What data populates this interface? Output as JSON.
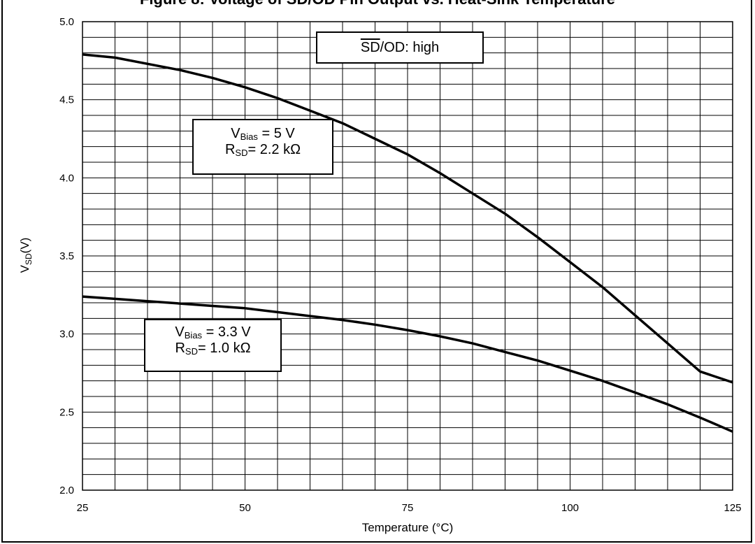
{
  "page": {
    "title": "Figure 8: Voltage of SD/OD Pin Output vs. Heat-Sink Temperature"
  },
  "chart_data": {
    "type": "line",
    "title": "Figure 8: Voltage of SD/OD Pin Output vs. Heat-Sink Temperature",
    "xlabel": "Temperature (°C)",
    "ylabel_main": "V",
    "ylabel_sub": "SD",
    "ylabel_suffix": "(V)",
    "xlim": [
      25,
      125
    ],
    "ylim": [
      2.0,
      5.0
    ],
    "x_ticks": [
      "25",
      "50",
      "75",
      "100",
      "125"
    ],
    "y_ticks": [
      "2.0",
      "2.5",
      "3.0",
      "3.5",
      "4.0",
      "4.5",
      "5.0"
    ],
    "grid": true,
    "annotations": {
      "state": {
        "overline": "SD",
        "rest": "/OD: high"
      },
      "curve_5v": {
        "vbias_sym": "V",
        "vbias_sub": "Bias",
        "vbias_val": " = 5 V",
        "rsd_sym": "R",
        "rsd_sub": "SD",
        "rsd_val": "= 2.2 kΩ"
      },
      "curve_33v": {
        "vbias_sym": "V",
        "vbias_sub": "Bias",
        "vbias_val": " = 3.3 V",
        "rsd_sym": "R",
        "rsd_sub": "SD",
        "rsd_val": "= 1.0 kΩ"
      }
    },
    "series": [
      {
        "values": [
          [
            25,
            4.79
          ],
          [
            30,
            4.77
          ],
          [
            35,
            4.73
          ],
          [
            40,
            4.69
          ],
          [
            45,
            4.64
          ],
          [
            50,
            4.58
          ],
          [
            55,
            4.51
          ],
          [
            60,
            4.43
          ],
          [
            65,
            4.35
          ],
          [
            70,
            4.25
          ],
          [
            75,
            4.15
          ],
          [
            80,
            4.03
          ],
          [
            85,
            3.9
          ],
          [
            90,
            3.77
          ],
          [
            95,
            3.62
          ],
          [
            100,
            3.46
          ],
          [
            105,
            3.3
          ],
          [
            110,
            3.12
          ],
          [
            115,
            2.94
          ],
          [
            120,
            2.76
          ],
          [
            125,
            2.69
          ]
        ]
      },
      {
        "values": [
          [
            25,
            3.24
          ],
          [
            30,
            3.225
          ],
          [
            35,
            3.21
          ],
          [
            40,
            3.195
          ],
          [
            45,
            3.18
          ],
          [
            50,
            3.165
          ],
          [
            55,
            3.14
          ],
          [
            60,
            3.115
          ],
          [
            65,
            3.09
          ],
          [
            70,
            3.06
          ],
          [
            75,
            3.025
          ],
          [
            80,
            2.985
          ],
          [
            85,
            2.94
          ],
          [
            90,
            2.885
          ],
          [
            95,
            2.83
          ],
          [
            100,
            2.765
          ],
          [
            105,
            2.7
          ],
          [
            110,
            2.625
          ],
          [
            115,
            2.55
          ],
          [
            120,
            2.465
          ],
          [
            125,
            2.375
          ]
        ]
      }
    ]
  }
}
